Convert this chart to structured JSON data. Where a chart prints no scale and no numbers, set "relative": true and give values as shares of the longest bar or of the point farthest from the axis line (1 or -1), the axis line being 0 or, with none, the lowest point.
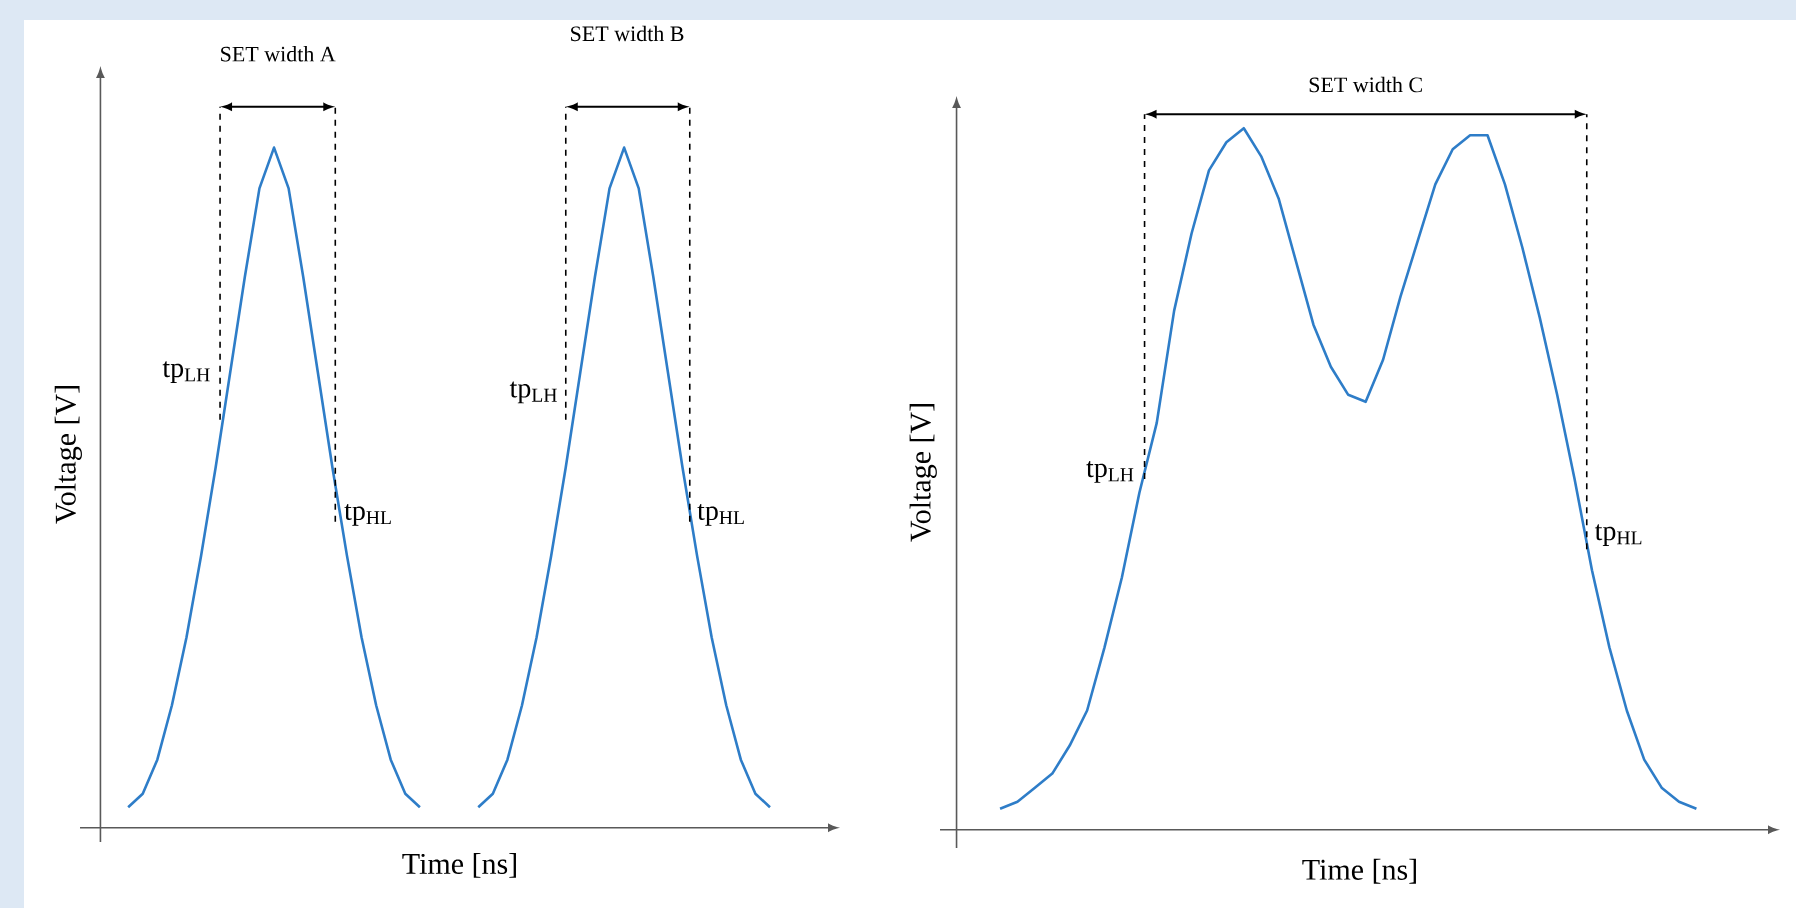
{
  "chart_data": [
    {
      "type": "line",
      "relative": true,
      "xlabel": "Time [ns]",
      "ylabel": "Voltage [V]",
      "categories": [
        null,
        null,
        null,
        null,
        null,
        null,
        null,
        null,
        null,
        null,
        null,
        null,
        null,
        null,
        null,
        null,
        null,
        null,
        null,
        null,
        null,
        null,
        null,
        null,
        null,
        null,
        null,
        null,
        null,
        null,
        null,
        null,
        null,
        null,
        null,
        null,
        null,
        null,
        null,
        null,
        null,
        null,
        null,
        null,
        null
      ],
      "series": [
        {
          "color": "#2e7dc8",
          "values": [
            0.03,
            0.05,
            0.1,
            0.18,
            0.28,
            0.4,
            0.53,
            0.67,
            0.81,
            0.94,
            1,
            0.94,
            0.81,
            0.67,
            0.53,
            0.4,
            0.28,
            0.18,
            0.1,
            0.05,
            0.03,
            null,
            null,
            null,
            null,
            null,
            null,
            null,
            null,
            null,
            null,
            null,
            null,
            null,
            null,
            null,
            null,
            null,
            null,
            null,
            null,
            null,
            null,
            null,
            null
          ]
        },
        {
          "color": "#2e7dc8",
          "values": [
            null,
            null,
            null,
            null,
            null,
            null,
            null,
            null,
            null,
            null,
            null,
            null,
            null,
            null,
            null,
            null,
            null,
            null,
            null,
            null,
            null,
            null,
            null,
            null,
            0.03,
            0.05,
            0.1,
            0.18,
            0.28,
            0.4,
            0.53,
            0.67,
            0.81,
            0.94,
            1,
            0.94,
            0.81,
            0.67,
            0.53,
            0.4,
            0.28,
            0.18,
            0.1,
            0.05,
            0.03
          ]
        }
      ],
      "annotations": [
        "SET width A",
        "SET width B",
        "tp$_{LH}$",
        "tp$_{HL}$",
        "tp$_{LH}$",
        "tp$_{HL}$"
      ]
    },
    {
      "type": "line",
      "relative": true,
      "xlabel": "Time [ns]",
      "ylabel": "Voltage [V]",
      "categories": [
        null,
        null,
        null,
        null,
        null,
        null,
        null,
        null,
        null,
        null,
        null,
        null,
        null,
        null,
        null,
        null,
        null,
        null,
        null,
        null,
        null,
        null,
        null,
        null,
        null,
        null,
        null,
        null,
        null,
        null,
        null,
        null,
        null,
        null,
        null,
        null,
        null,
        null,
        null,
        null,
        null
      ],
      "series": [
        {
          "color": "#2e7dc8",
          "values": [
            0.03,
            0.04,
            0.06,
            0.08,
            0.12,
            0.17,
            0.26,
            0.36,
            0.48,
            0.58,
            0.74,
            0.85,
            0.94,
            0.98,
            1.0,
            0.96,
            0.9,
            0.81,
            0.72,
            0.66,
            0.62,
            0.61,
            0.67,
            0.76,
            0.84,
            0.92,
            0.97,
            0.99,
            0.99,
            0.92,
            0.83,
            0.73,
            0.62,
            0.5,
            0.37,
            0.26,
            0.17,
            0.1,
            0.06,
            0.04,
            0.03
          ]
        }
      ],
      "annotations": [
        "SET width C",
        "tp$_{LH}$",
        "tp$_{HL}$"
      ]
    }
  ]
}
